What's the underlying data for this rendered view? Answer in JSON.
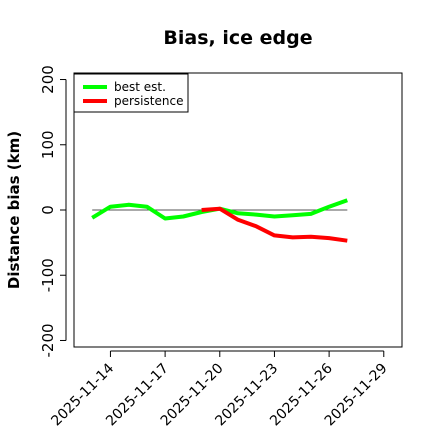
{
  "chart_data": {
    "type": "line",
    "title": "Bias, ice edge",
    "xlabel": "",
    "ylabel": "Distance bias (km)",
    "x_ticks": [
      "2025-11-14",
      "2025-11-17",
      "2025-11-20",
      "2025-11-23",
      "2025-11-26",
      "2025-11-29"
    ],
    "y_ticks": [
      -200,
      -100,
      0,
      100,
      200
    ],
    "xlim": [
      "2025-11-12",
      "2025-11-30"
    ],
    "ylim": [
      -210,
      210
    ],
    "zero_line": true,
    "grid": false,
    "legend_position": "top-left",
    "series": [
      {
        "name": "best est.",
        "color": "#00ff00",
        "x": [
          "2025-11-13",
          "2025-11-14",
          "2025-11-15",
          "2025-11-16",
          "2025-11-17",
          "2025-11-18",
          "2025-11-19",
          "2025-11-20",
          "2025-11-21",
          "2025-11-22",
          "2025-11-23",
          "2025-11-24",
          "2025-11-25",
          "2025-11-26",
          "2025-11-27"
        ],
        "values": [
          -12,
          5,
          8,
          5,
          -13,
          -10,
          -3,
          2,
          -5,
          -7,
          -10,
          -8,
          -6,
          5,
          15
        ]
      },
      {
        "name": "persistence",
        "color": "#ff0000",
        "x": [
          "2025-11-19",
          "2025-11-20",
          "2025-11-21",
          "2025-11-22",
          "2025-11-23",
          "2025-11-24",
          "2025-11-25",
          "2025-11-26",
          "2025-11-27"
        ],
        "values": [
          0,
          2,
          -15,
          -25,
          -39,
          -42,
          -41,
          -43,
          -47
        ]
      }
    ]
  }
}
